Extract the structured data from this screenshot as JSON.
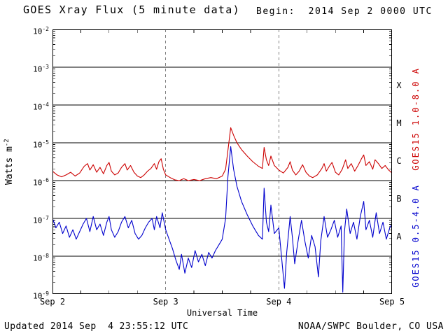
{
  "header": {
    "title": "GOES Xray Flux (5 minute data)",
    "begin": "Begin:  2014 Sep 2 0000 UTC"
  },
  "footer": {
    "updated": "Updated 2014 Sep  4 23:55:12 UTC",
    "source": "NOAA/SWPC Boulder, CO USA"
  },
  "colors": {
    "red": "#cc0000",
    "blue": "#0000cd",
    "grid": "#000000",
    "background": "#ffffff"
  },
  "axes": {
    "ylabel_base": "Watts m",
    "ylabel_exp": "-2",
    "xlabel": "Universal Time"
  },
  "right_labels": {
    "red": "GOES15 1.0-8.0 A",
    "blue": "GOES15 0.5-4.0 A"
  },
  "class_bands": [
    {
      "label": "X",
      "log_center": -3.5
    },
    {
      "label": "M",
      "log_center": -4.5
    },
    {
      "label": "C",
      "log_center": -5.5
    },
    {
      "label": "B",
      "log_center": -6.5
    },
    {
      "label": "A",
      "log_center": -7.5
    }
  ],
  "chart_data": {
    "type": "line",
    "title": "GOES Xray Flux (5 minute data)",
    "xlabel": "Universal Time",
    "ylabel": "Watts m^-2",
    "x_unit": "days since 2014 Sep 2 0000 UTC",
    "y_unit": "log10(Watts m^-2)",
    "xlim": [
      0,
      3
    ],
    "ylim_log10": [
      -9,
      -2
    ],
    "x_ticks": [
      {
        "t": 0,
        "label": "Sep 2"
      },
      {
        "t": 1,
        "label": "Sep 3"
      },
      {
        "t": 2,
        "label": "Sep 4"
      },
      {
        "t": 3,
        "label": "Sep 5"
      }
    ],
    "y_tick_exponents": [
      -2,
      -3,
      -4,
      -5,
      -6,
      -7,
      -8,
      -9
    ],
    "grid": {
      "h_lines_at_exponents": true,
      "v_dashed_at_days": [
        1,
        2
      ]
    },
    "legend_position": "right-rotated",
    "series": [
      {
        "name": "GOES15 1.0-8.0 A",
        "color": "#cc0000",
        "points_t_log10flux": [
          [
            0.0,
            -5.75
          ],
          [
            0.04,
            -5.85
          ],
          [
            0.08,
            -5.9
          ],
          [
            0.12,
            -5.85
          ],
          [
            0.16,
            -5.78
          ],
          [
            0.2,
            -5.88
          ],
          [
            0.24,
            -5.8
          ],
          [
            0.28,
            -5.62
          ],
          [
            0.31,
            -5.55
          ],
          [
            0.33,
            -5.72
          ],
          [
            0.36,
            -5.58
          ],
          [
            0.39,
            -5.78
          ],
          [
            0.42,
            -5.65
          ],
          [
            0.45,
            -5.82
          ],
          [
            0.48,
            -5.6
          ],
          [
            0.5,
            -5.52
          ],
          [
            0.52,
            -5.75
          ],
          [
            0.55,
            -5.85
          ],
          [
            0.58,
            -5.8
          ],
          [
            0.61,
            -5.65
          ],
          [
            0.64,
            -5.55
          ],
          [
            0.66,
            -5.72
          ],
          [
            0.69,
            -5.6
          ],
          [
            0.72,
            -5.78
          ],
          [
            0.75,
            -5.88
          ],
          [
            0.78,
            -5.92
          ],
          [
            0.81,
            -5.85
          ],
          [
            0.84,
            -5.75
          ],
          [
            0.87,
            -5.68
          ],
          [
            0.9,
            -5.55
          ],
          [
            0.92,
            -5.7
          ],
          [
            0.94,
            -5.5
          ],
          [
            0.96,
            -5.42
          ],
          [
            0.98,
            -5.7
          ],
          [
            1.0,
            -5.85
          ],
          [
            1.04,
            -5.92
          ],
          [
            1.08,
            -5.98
          ],
          [
            1.12,
            -6.0
          ],
          [
            1.16,
            -5.95
          ],
          [
            1.2,
            -6.0
          ],
          [
            1.25,
            -5.97
          ],
          [
            1.3,
            -6.0
          ],
          [
            1.35,
            -5.95
          ],
          [
            1.4,
            -5.92
          ],
          [
            1.45,
            -5.95
          ],
          [
            1.5,
            -5.88
          ],
          [
            1.53,
            -5.7
          ],
          [
            1.55,
            -5.2
          ],
          [
            1.575,
            -4.6
          ],
          [
            1.6,
            -4.8
          ],
          [
            1.63,
            -5.0
          ],
          [
            1.67,
            -5.18
          ],
          [
            1.72,
            -5.35
          ],
          [
            1.77,
            -5.5
          ],
          [
            1.82,
            -5.62
          ],
          [
            1.855,
            -5.68
          ],
          [
            1.87,
            -5.12
          ],
          [
            1.89,
            -5.45
          ],
          [
            1.91,
            -5.6
          ],
          [
            1.93,
            -5.35
          ],
          [
            1.96,
            -5.6
          ],
          [
            2.0,
            -5.72
          ],
          [
            2.04,
            -5.8
          ],
          [
            2.08,
            -5.65
          ],
          [
            2.1,
            -5.5
          ],
          [
            2.12,
            -5.72
          ],
          [
            2.15,
            -5.85
          ],
          [
            2.18,
            -5.75
          ],
          [
            2.21,
            -5.58
          ],
          [
            2.24,
            -5.78
          ],
          [
            2.27,
            -5.88
          ],
          [
            2.3,
            -5.92
          ],
          [
            2.34,
            -5.85
          ],
          [
            2.38,
            -5.68
          ],
          [
            2.4,
            -5.55
          ],
          [
            2.42,
            -5.75
          ],
          [
            2.45,
            -5.6
          ],
          [
            2.47,
            -5.52
          ],
          [
            2.5,
            -5.78
          ],
          [
            2.53,
            -5.85
          ],
          [
            2.56,
            -5.7
          ],
          [
            2.59,
            -5.45
          ],
          [
            2.61,
            -5.68
          ],
          [
            2.64,
            -5.55
          ],
          [
            2.67,
            -5.75
          ],
          [
            2.7,
            -5.6
          ],
          [
            2.73,
            -5.42
          ],
          [
            2.75,
            -5.32
          ],
          [
            2.77,
            -5.6
          ],
          [
            2.8,
            -5.5
          ],
          [
            2.83,
            -5.7
          ],
          [
            2.85,
            -5.45
          ],
          [
            2.88,
            -5.55
          ],
          [
            2.91,
            -5.68
          ],
          [
            2.94,
            -5.6
          ],
          [
            2.97,
            -5.72
          ],
          [
            3.0,
            -5.8
          ]
        ]
      },
      {
        "name": "GOES15 0.5-4.0 A",
        "color": "#0000cd",
        "points_t_log10flux": [
          [
            0.0,
            -7.0
          ],
          [
            0.03,
            -7.25
          ],
          [
            0.06,
            -7.1
          ],
          [
            0.09,
            -7.4
          ],
          [
            0.12,
            -7.2
          ],
          [
            0.15,
            -7.5
          ],
          [
            0.18,
            -7.3
          ],
          [
            0.21,
            -7.55
          ],
          [
            0.24,
            -7.35
          ],
          [
            0.27,
            -7.15
          ],
          [
            0.3,
            -7.0
          ],
          [
            0.33,
            -7.35
          ],
          [
            0.36,
            -6.95
          ],
          [
            0.39,
            -7.3
          ],
          [
            0.42,
            -7.15
          ],
          [
            0.45,
            -7.45
          ],
          [
            0.48,
            -7.1
          ],
          [
            0.5,
            -6.95
          ],
          [
            0.52,
            -7.3
          ],
          [
            0.55,
            -7.5
          ],
          [
            0.58,
            -7.35
          ],
          [
            0.61,
            -7.1
          ],
          [
            0.64,
            -6.95
          ],
          [
            0.67,
            -7.25
          ],
          [
            0.7,
            -7.05
          ],
          [
            0.73,
            -7.4
          ],
          [
            0.76,
            -7.55
          ],
          [
            0.79,
            -7.45
          ],
          [
            0.82,
            -7.25
          ],
          [
            0.85,
            -7.1
          ],
          [
            0.88,
            -7.0
          ],
          [
            0.9,
            -7.3
          ],
          [
            0.92,
            -6.95
          ],
          [
            0.95,
            -7.25
          ],
          [
            0.97,
            -6.85
          ],
          [
            1.0,
            -7.3
          ],
          [
            1.03,
            -7.55
          ],
          [
            1.06,
            -7.8
          ],
          [
            1.09,
            -8.1
          ],
          [
            1.12,
            -8.35
          ],
          [
            1.14,
            -7.95
          ],
          [
            1.17,
            -8.45
          ],
          [
            1.2,
            -8.05
          ],
          [
            1.23,
            -8.3
          ],
          [
            1.26,
            -7.85
          ],
          [
            1.29,
            -8.15
          ],
          [
            1.32,
            -7.95
          ],
          [
            1.35,
            -8.25
          ],
          [
            1.38,
            -7.9
          ],
          [
            1.41,
            -8.05
          ],
          [
            1.44,
            -7.85
          ],
          [
            1.47,
            -7.7
          ],
          [
            1.5,
            -7.55
          ],
          [
            1.53,
            -7.0
          ],
          [
            1.55,
            -5.9
          ],
          [
            1.575,
            -5.1
          ],
          [
            1.6,
            -5.7
          ],
          [
            1.63,
            -6.15
          ],
          [
            1.67,
            -6.55
          ],
          [
            1.72,
            -6.9
          ],
          [
            1.77,
            -7.2
          ],
          [
            1.82,
            -7.45
          ],
          [
            1.855,
            -7.55
          ],
          [
            1.87,
            -6.2
          ],
          [
            1.89,
            -7.1
          ],
          [
            1.91,
            -7.35
          ],
          [
            1.93,
            -6.65
          ],
          [
            1.96,
            -7.4
          ],
          [
            2.0,
            -7.25
          ],
          [
            2.02,
            -7.9
          ],
          [
            2.05,
            -8.85
          ],
          [
            2.07,
            -7.9
          ],
          [
            2.1,
            -6.95
          ],
          [
            2.12,
            -7.5
          ],
          [
            2.14,
            -8.2
          ],
          [
            2.17,
            -7.6
          ],
          [
            2.2,
            -7.05
          ],
          [
            2.23,
            -7.6
          ],
          [
            2.26,
            -8.05
          ],
          [
            2.29,
            -7.45
          ],
          [
            2.32,
            -7.75
          ],
          [
            2.35,
            -8.55
          ],
          [
            2.37,
            -7.6
          ],
          [
            2.4,
            -6.95
          ],
          [
            2.43,
            -7.5
          ],
          [
            2.46,
            -7.3
          ],
          [
            2.49,
            -7.05
          ],
          [
            2.52,
            -7.5
          ],
          [
            2.55,
            -7.2
          ],
          [
            2.565,
            -8.95
          ],
          [
            2.58,
            -7.35
          ],
          [
            2.6,
            -6.75
          ],
          [
            2.63,
            -7.4
          ],
          [
            2.66,
            -7.1
          ],
          [
            2.69,
            -7.55
          ],
          [
            2.72,
            -6.95
          ],
          [
            2.75,
            -6.55
          ],
          [
            2.77,
            -7.3
          ],
          [
            2.8,
            -7.05
          ],
          [
            2.83,
            -7.5
          ],
          [
            2.86,
            -6.85
          ],
          [
            2.89,
            -7.4
          ],
          [
            2.92,
            -7.1
          ],
          [
            2.95,
            -7.55
          ],
          [
            2.98,
            -7.25
          ],
          [
            3.0,
            -7.15
          ]
        ]
      }
    ]
  }
}
